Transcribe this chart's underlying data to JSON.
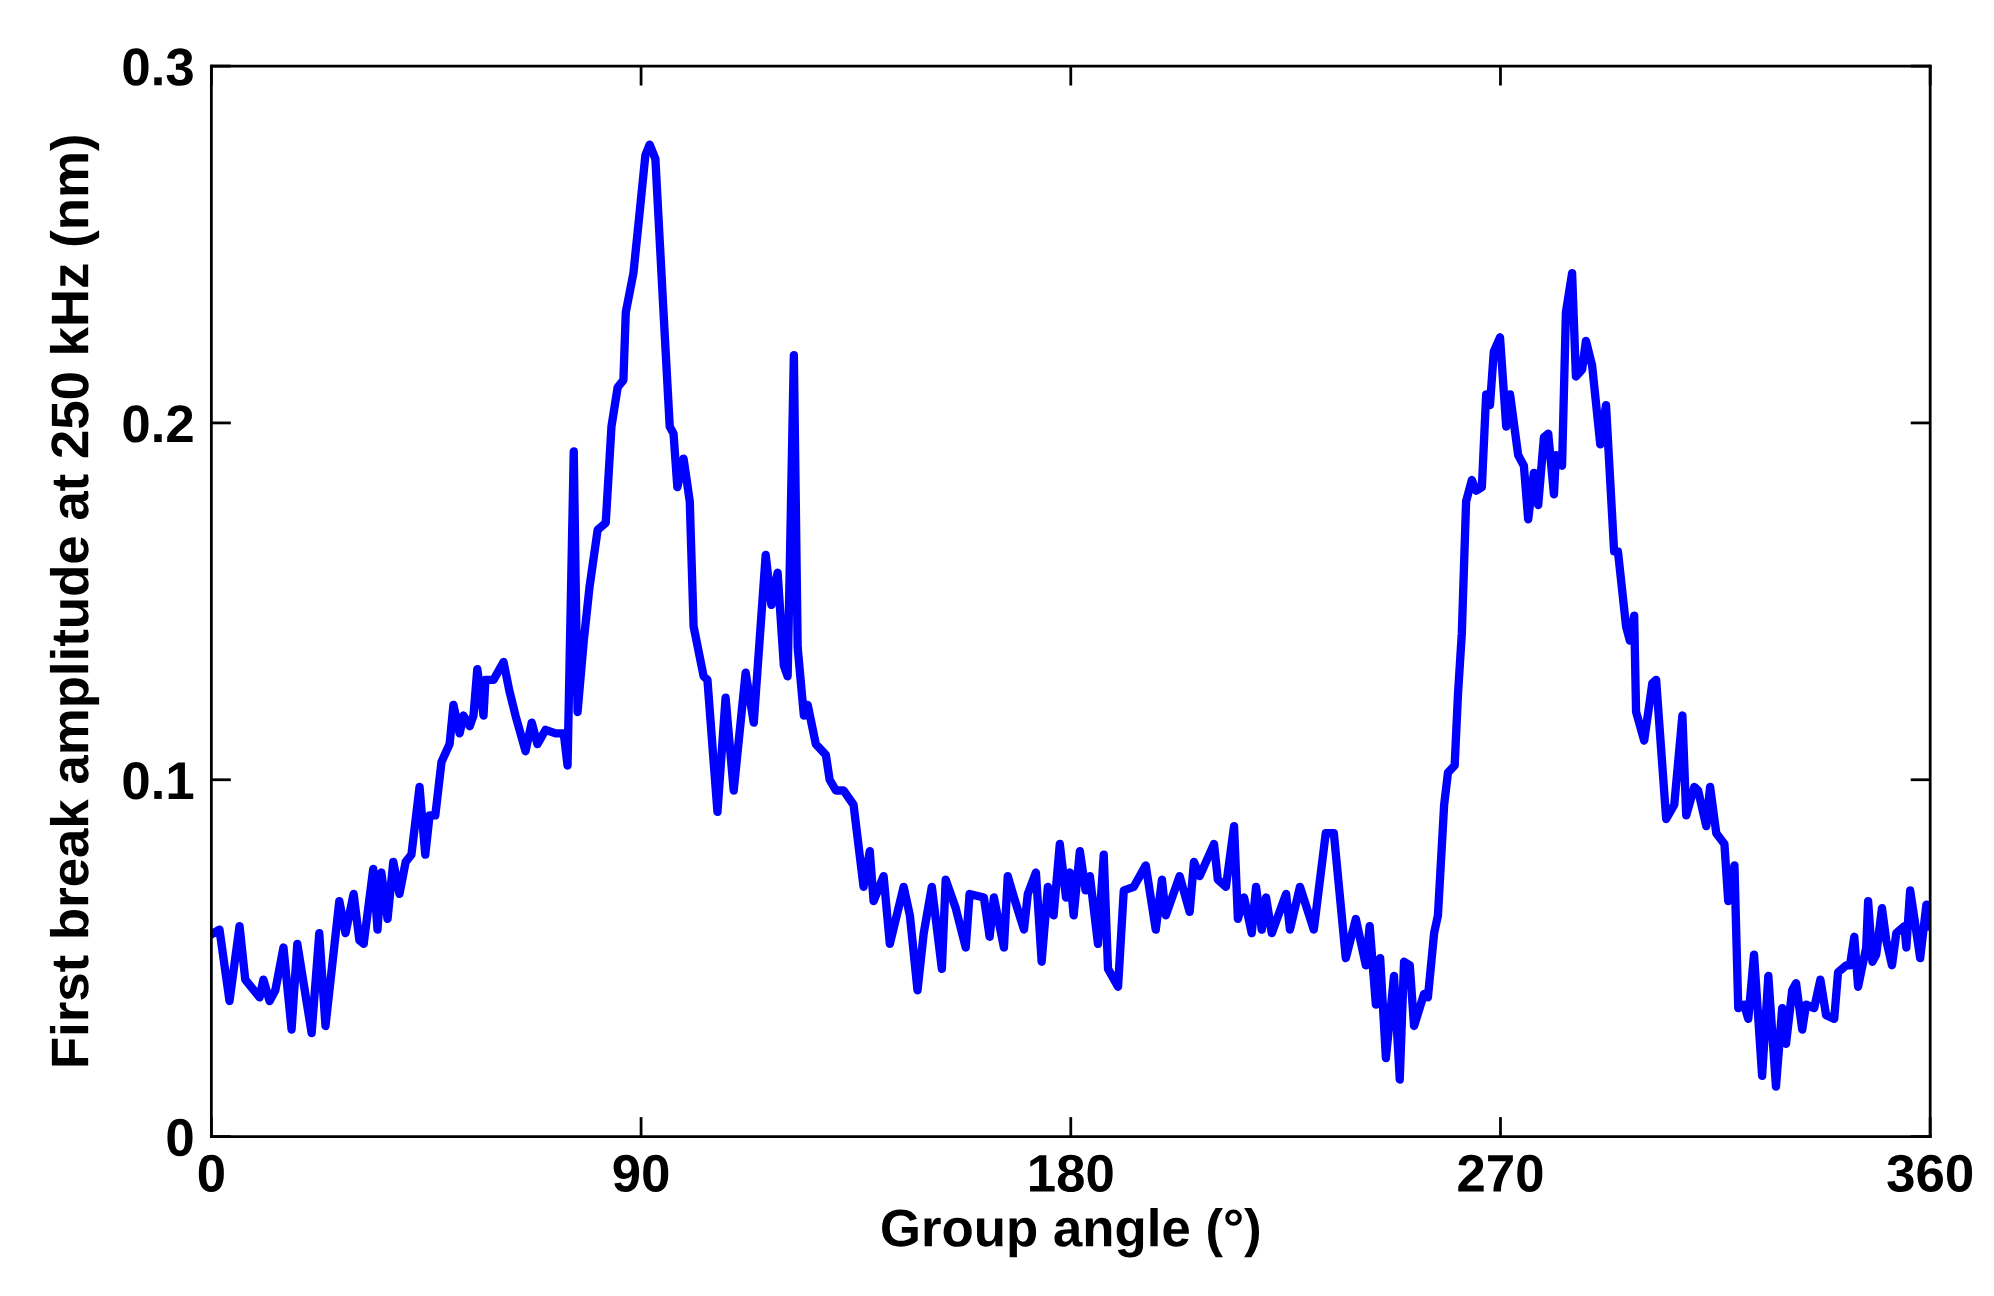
{
  "chart_data": {
    "type": "line",
    "xlabel": "Group angle (°)",
    "ylabel": "First break amplitude at 250 kHz (nm)",
    "xlim": [
      0,
      360
    ],
    "xticks": [
      0,
      90,
      180,
      270,
      360
    ],
    "ylim": [
      0,
      0.3
    ],
    "yticks": [
      0,
      0.1,
      0.2,
      0.3
    ],
    "grid": false,
    "marker": "none",
    "line_style": "solid",
    "series": [
      {
        "color": "#0000ff",
        "x": [
          0.4,
          1.7,
          3.8,
          5.9,
          7.1,
          10.1,
          10.9,
          12.2,
          13.4,
          15.1,
          16.8,
          18.0,
          21.0,
          22.6,
          23.9,
          26.8,
          28.1,
          29.8,
          31.0,
          31.9,
          33.9,
          34.8,
          35.6,
          36.9,
          38.1,
          39.4,
          40.7,
          41.9,
          43.6,
          44.8,
          45.7,
          46.9,
          48.2,
          49.9,
          50.7,
          52.0,
          52.8,
          54.1,
          54.9,
          55.7,
          57.0,
          57.4,
          59.1,
          61.2,
          62.4,
          63.7,
          65.8,
          67.1,
          68.3,
          70.0,
          72.1,
          73.8,
          74.6,
          75.9,
          76.7,
          78.0,
          79.2,
          80.9,
          82.6,
          83.8,
          85.1,
          86.3,
          86.8,
          88.4,
          89.7,
          90.9,
          91.8,
          93.0,
          94.7,
          96.0,
          96.8,
          97.6,
          98.9,
          100.2,
          101.0,
          103.1,
          103.9,
          105.2,
          106.0,
          107.7,
          109.4,
          111.9,
          113.6,
          116.1,
          117.3,
          118.6,
          119.9,
          120.7,
          122.0,
          122.8,
          124.1,
          124.9,
          126.6,
          128.7,
          129.5,
          130.8,
          132.4,
          134.5,
          136.6,
          137.9,
          138.7,
          140.8,
          142.1,
          145.0,
          146.3,
          147.9,
          149.2,
          150.9,
          153.0,
          153.8,
          155.9,
          158.0,
          158.8,
          161.8,
          163.0,
          163.9,
          166.0,
          166.8,
          168.1,
          170.2,
          171.0,
          172.7,
          173.9,
          175.2,
          176.4,
          177.7,
          179.0,
          179.8,
          180.6,
          181.9,
          183.1,
          184.0,
          185.7,
          186.9,
          187.8,
          189.9,
          191.1,
          193.2,
          195.7,
          197.8,
          199.1,
          199.9,
          202.8,
          204.9,
          205.8,
          207.0,
          210.0,
          210.8,
          212.5,
          214.2,
          215.0,
          216.3,
          217.9,
          218.8,
          220.0,
          220.9,
          222.1,
          225.1,
          225.9,
          228.0,
          230.9,
          233.4,
          235.1,
          237.6,
          239.7,
          241.8,
          242.6,
          243.9,
          244.8,
          246.0,
          247.7,
          248.9,
          249.8,
          251.0,
          251.9,
          254.0,
          254.8,
          256.1,
          256.9,
          258.2,
          259.0,
          260.4,
          261.1,
          261.9,
          262.8,
          264.0,
          264.9,
          266.1,
          267.0,
          267.8,
          268.6,
          269.9,
          271.2,
          272.0,
          273.7,
          274.9,
          275.8,
          277.0,
          277.9,
          279.1,
          280.0,
          281.2,
          281.6,
          282.9,
          283.7,
          285.0,
          285.8,
          287.1,
          287.9,
          289.2,
          290.9,
          292.1,
          293.8,
          294.6,
          296.3,
          297.1,
          298.0,
          298.4,
          300.1,
          301.8,
          302.6,
          304.7,
          306.4,
          308.1,
          308.9,
          310.6,
          311.4,
          313.1,
          313.9,
          315.2,
          316.9,
          317.7,
          319.0,
          319.8,
          321.0,
          321.9,
          323.1,
          324.8,
          326.1,
          327.7,
          329.0,
          329.8,
          331.1,
          331.9,
          333.2,
          334.0,
          335.7,
          337.0,
          338.2,
          339.9,
          340.7,
          342.4,
          343.2,
          344.1,
          344.9,
          346.6,
          347.0,
          347.9,
          348.7,
          349.9,
          350.8,
          352.0,
          352.9,
          354.6,
          355.0,
          355.8,
          356.7,
          357.9,
          359.2,
          360.0
        ],
        "values": [
          0.057,
          0.058,
          0.038,
          0.059,
          0.044,
          0.039,
          0.044,
          0.038,
          0.041,
          0.053,
          0.03,
          0.054,
          0.029,
          0.057,
          0.031,
          0.066,
          0.057,
          0.068,
          0.055,
          0.054,
          0.075,
          0.058,
          0.074,
          0.061,
          0.077,
          0.068,
          0.077,
          0.079,
          0.098,
          0.079,
          0.09,
          0.09,
          0.105,
          0.11,
          0.121,
          0.113,
          0.118,
          0.115,
          0.118,
          0.131,
          0.118,
          0.128,
          0.128,
          0.133,
          0.125,
          0.118,
          0.108,
          0.116,
          0.11,
          0.114,
          0.113,
          0.113,
          0.104,
          0.192,
          0.119,
          0.139,
          0.154,
          0.17,
          0.172,
          0.199,
          0.21,
          0.212,
          0.231,
          0.242,
          0.259,
          0.275,
          0.278,
          0.274,
          0.231,
          0.199,
          0.197,
          0.182,
          0.19,
          0.178,
          0.143,
          0.129,
          0.128,
          0.105,
          0.091,
          0.123,
          0.097,
          0.13,
          0.116,
          0.163,
          0.149,
          0.158,
          0.132,
          0.129,
          0.219,
          0.137,
          0.118,
          0.121,
          0.11,
          0.107,
          0.1,
          0.097,
          0.097,
          0.093,
          0.07,
          0.08,
          0.066,
          0.073,
          0.054,
          0.07,
          0.062,
          0.041,
          0.057,
          0.07,
          0.047,
          0.072,
          0.064,
          0.053,
          0.068,
          0.067,
          0.056,
          0.067,
          0.053,
          0.073,
          0.067,
          0.058,
          0.068,
          0.074,
          0.049,
          0.07,
          0.062,
          0.082,
          0.067,
          0.074,
          0.062,
          0.08,
          0.069,
          0.073,
          0.054,
          0.079,
          0.047,
          0.042,
          0.069,
          0.07,
          0.076,
          0.058,
          0.072,
          0.062,
          0.073,
          0.063,
          0.077,
          0.073,
          0.082,
          0.072,
          0.07,
          0.087,
          0.061,
          0.067,
          0.057,
          0.07,
          0.058,
          0.067,
          0.057,
          0.068,
          0.058,
          0.07,
          0.058,
          0.085,
          0.085,
          0.05,
          0.061,
          0.048,
          0.059,
          0.037,
          0.05,
          0.022,
          0.045,
          0.016,
          0.049,
          0.048,
          0.031,
          0.04,
          0.039,
          0.057,
          0.062,
          0.093,
          0.102,
          0.104,
          0.124,
          0.141,
          0.178,
          0.184,
          0.181,
          0.182,
          0.208,
          0.205,
          0.22,
          0.224,
          0.199,
          0.208,
          0.191,
          0.188,
          0.173,
          0.186,
          0.177,
          0.196,
          0.197,
          0.18,
          0.191,
          0.188,
          0.231,
          0.242,
          0.213,
          0.215,
          0.223,
          0.216,
          0.194,
          0.205,
          0.164,
          0.164,
          0.143,
          0.139,
          0.146,
          0.119,
          0.111,
          0.127,
          0.128,
          0.089,
          0.093,
          0.118,
          0.09,
          0.098,
          0.097,
          0.087,
          0.098,
          0.085,
          0.082,
          0.066,
          0.076,
          0.036,
          0.037,
          0.033,
          0.051,
          0.017,
          0.045,
          0.014,
          0.036,
          0.026,
          0.041,
          0.043,
          0.03,
          0.037,
          0.036,
          0.044,
          0.034,
          0.033,
          0.046,
          0.048,
          0.048,
          0.056,
          0.042,
          0.053,
          0.066,
          0.049,
          0.051,
          0.064,
          0.055,
          0.048,
          0.057,
          0.059,
          0.053,
          0.069,
          0.061,
          0.05,
          0.065,
          0.059
        ]
      }
    ]
  }
}
